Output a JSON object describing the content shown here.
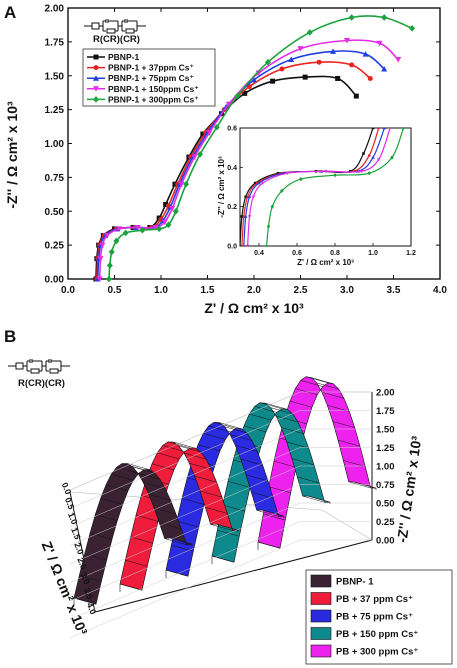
{
  "chart_data": [
    {
      "panel": "A",
      "type": "line",
      "circuit_label": "R(CR)(CR)",
      "xlabel": "Z' / Ω cm² x 10³",
      "ylabel": "-Z'' / Ω cm² x 10³",
      "xlim": [
        0.0,
        4.0
      ],
      "ylim": [
        0.0,
        2.0
      ],
      "x_ticks": [
        "0.0",
        "0.5",
        "1.0",
        "1.5",
        "2.0",
        "2.5",
        "3.0",
        "3.5",
        "4.0"
      ],
      "y_ticks": [
        "0.00",
        "0.25",
        "0.50",
        "0.75",
        "1.00",
        "1.25",
        "1.50",
        "1.75",
        "2.00"
      ],
      "legend_position": "upper-left",
      "series": [
        {
          "name": "PBNP-1",
          "color": "#111111",
          "marker": "square",
          "x": [
            0.3,
            0.31,
            0.33,
            0.38,
            0.5,
            0.7,
            0.88,
            0.98,
            1.05,
            1.15,
            1.3,
            1.45,
            1.65,
            1.9,
            2.2,
            2.55,
            2.9,
            3.1
          ],
          "y": [
            0.0,
            0.15,
            0.25,
            0.32,
            0.37,
            0.38,
            0.38,
            0.45,
            0.55,
            0.7,
            0.9,
            1.07,
            1.22,
            1.37,
            1.46,
            1.49,
            1.48,
            1.35
          ]
        },
        {
          "name": "PBNP-1 + 37ppm Cs⁺",
          "color": "#e8231f",
          "marker": "circle",
          "x": [
            0.31,
            0.32,
            0.34,
            0.39,
            0.52,
            0.72,
            0.9,
            1.0,
            1.08,
            1.18,
            1.32,
            1.48,
            1.68,
            1.95,
            2.3,
            2.7,
            3.05,
            3.25
          ],
          "y": [
            0.0,
            0.15,
            0.25,
            0.32,
            0.37,
            0.38,
            0.38,
            0.44,
            0.54,
            0.7,
            0.9,
            1.08,
            1.25,
            1.42,
            1.55,
            1.6,
            1.58,
            1.48
          ]
        },
        {
          "name": "PBNP-1 + 75ppm Cs⁺",
          "color": "#1f3fe6",
          "marker": "triangle",
          "x": [
            0.32,
            0.33,
            0.35,
            0.4,
            0.53,
            0.73,
            0.92,
            1.02,
            1.1,
            1.2,
            1.34,
            1.5,
            1.7,
            2.0,
            2.4,
            2.85,
            3.2,
            3.4
          ],
          "y": [
            0.0,
            0.15,
            0.25,
            0.32,
            0.37,
            0.38,
            0.38,
            0.43,
            0.53,
            0.7,
            0.9,
            1.08,
            1.27,
            1.47,
            1.62,
            1.68,
            1.66,
            1.55
          ]
        },
        {
          "name": "PBNP-1 + 150ppm Cs⁺",
          "color": "#e62be6",
          "marker": "triangle-down",
          "x": [
            0.34,
            0.35,
            0.37,
            0.42,
            0.55,
            0.75,
            0.94,
            1.04,
            1.12,
            1.22,
            1.36,
            1.52,
            1.73,
            2.05,
            2.5,
            3.0,
            3.35,
            3.55
          ],
          "y": [
            0.0,
            0.15,
            0.25,
            0.32,
            0.37,
            0.38,
            0.38,
            0.42,
            0.52,
            0.7,
            0.9,
            1.08,
            1.29,
            1.52,
            1.7,
            1.76,
            1.74,
            1.62
          ]
        },
        {
          "name": "PBNP-1 + 300ppm Cs⁺",
          "color": "#1aa33c",
          "marker": "diamond",
          "x": [
            0.44,
            0.45,
            0.47,
            0.52,
            0.62,
            0.8,
            0.98,
            1.08,
            1.16,
            1.27,
            1.42,
            1.6,
            1.82,
            2.15,
            2.6,
            3.05,
            3.4,
            3.7
          ],
          "y": [
            0.0,
            0.1,
            0.2,
            0.28,
            0.34,
            0.36,
            0.37,
            0.4,
            0.5,
            0.7,
            0.92,
            1.12,
            1.35,
            1.6,
            1.82,
            1.93,
            1.93,
            1.85
          ]
        }
      ],
      "inset": {
        "type": "line",
        "xlabel": "Z' / Ω cm² x 10³",
        "ylabel": "-Z'' / Ω cm² x 10³",
        "xlim": [
          0.3,
          1.2
        ],
        "ylim": [
          0.0,
          0.6
        ],
        "x_ticks": [
          "0.4",
          "0.6",
          "0.8",
          "1.0",
          "1.2"
        ],
        "y_ticks": [
          "0.0",
          "0.2",
          "0.4",
          "0.6"
        ],
        "series": [
          {
            "name": "PBNP-1",
            "x": [
              0.3,
              0.31,
              0.33,
              0.38,
              0.5,
              0.7,
              0.88,
              0.95,
              1.0
            ],
            "y": [
              0.0,
              0.15,
              0.25,
              0.32,
              0.37,
              0.38,
              0.38,
              0.47,
              0.6
            ]
          },
          {
            "name": "PBNP-1 + 37ppm Cs⁺",
            "x": [
              0.31,
              0.32,
              0.34,
              0.39,
              0.52,
              0.72,
              0.9,
              0.98,
              1.03
            ],
            "y": [
              0.0,
              0.15,
              0.25,
              0.32,
              0.37,
              0.38,
              0.38,
              0.46,
              0.6
            ]
          },
          {
            "name": "PBNP-1 + 75ppm Cs⁺",
            "x": [
              0.32,
              0.33,
              0.35,
              0.4,
              0.53,
              0.73,
              0.92,
              1.0,
              1.06
            ],
            "y": [
              0.0,
              0.15,
              0.25,
              0.32,
              0.37,
              0.38,
              0.38,
              0.45,
              0.6
            ]
          },
          {
            "name": "PBNP-1 + 150ppm Cs⁺",
            "x": [
              0.34,
              0.35,
              0.37,
              0.42,
              0.55,
              0.75,
              0.94,
              1.03,
              1.09
            ],
            "y": [
              0.0,
              0.15,
              0.25,
              0.32,
              0.37,
              0.38,
              0.38,
              0.44,
              0.6
            ]
          },
          {
            "name": "PBNP-1 + 300ppm Cs⁺",
            "x": [
              0.44,
              0.45,
              0.47,
              0.52,
              0.62,
              0.8,
              0.98,
              1.1,
              1.16
            ],
            "y": [
              0.0,
              0.1,
              0.2,
              0.28,
              0.34,
              0.36,
              0.37,
              0.45,
              0.6
            ]
          }
        ]
      }
    },
    {
      "panel": "B",
      "type": "area",
      "view": "3d-waterfall",
      "circuit_label": "R(CR)(CR)",
      "xlabel": "Z' / Ω cm² x 10³",
      "zlabel": "-Z'' / Ω cm² x 10³",
      "x_ticks": [
        "0.0",
        "0.5",
        "1.0",
        "1.5",
        "2.0",
        "2.5",
        "3.0",
        "3.5",
        "4.0"
      ],
      "z_ticks": [
        "0.00",
        "0.25",
        "0.50",
        "0.75",
        "1.00",
        "1.25",
        "1.50",
        "1.75",
        "2.00"
      ],
      "legend_position": "bottom-right",
      "series": [
        {
          "name": "PBNP- 1",
          "color": "#3a2233",
          "peak": 1.49
        },
        {
          "name": "PB + 37 ppm Cs⁺",
          "color": "#ef1c3c",
          "peak": 1.6
        },
        {
          "name": "PB + 75 ppm Cs⁺",
          "color": "#2a2ae0",
          "peak": 1.68
        },
        {
          "name": "PB + 150 ppm Cs⁺",
          "color": "#0f8a8c",
          "peak": 1.76
        },
        {
          "name": "PB + 300 ppm Cs⁺",
          "color": "#ee22ee",
          "peak": 1.93
        }
      ]
    }
  ]
}
